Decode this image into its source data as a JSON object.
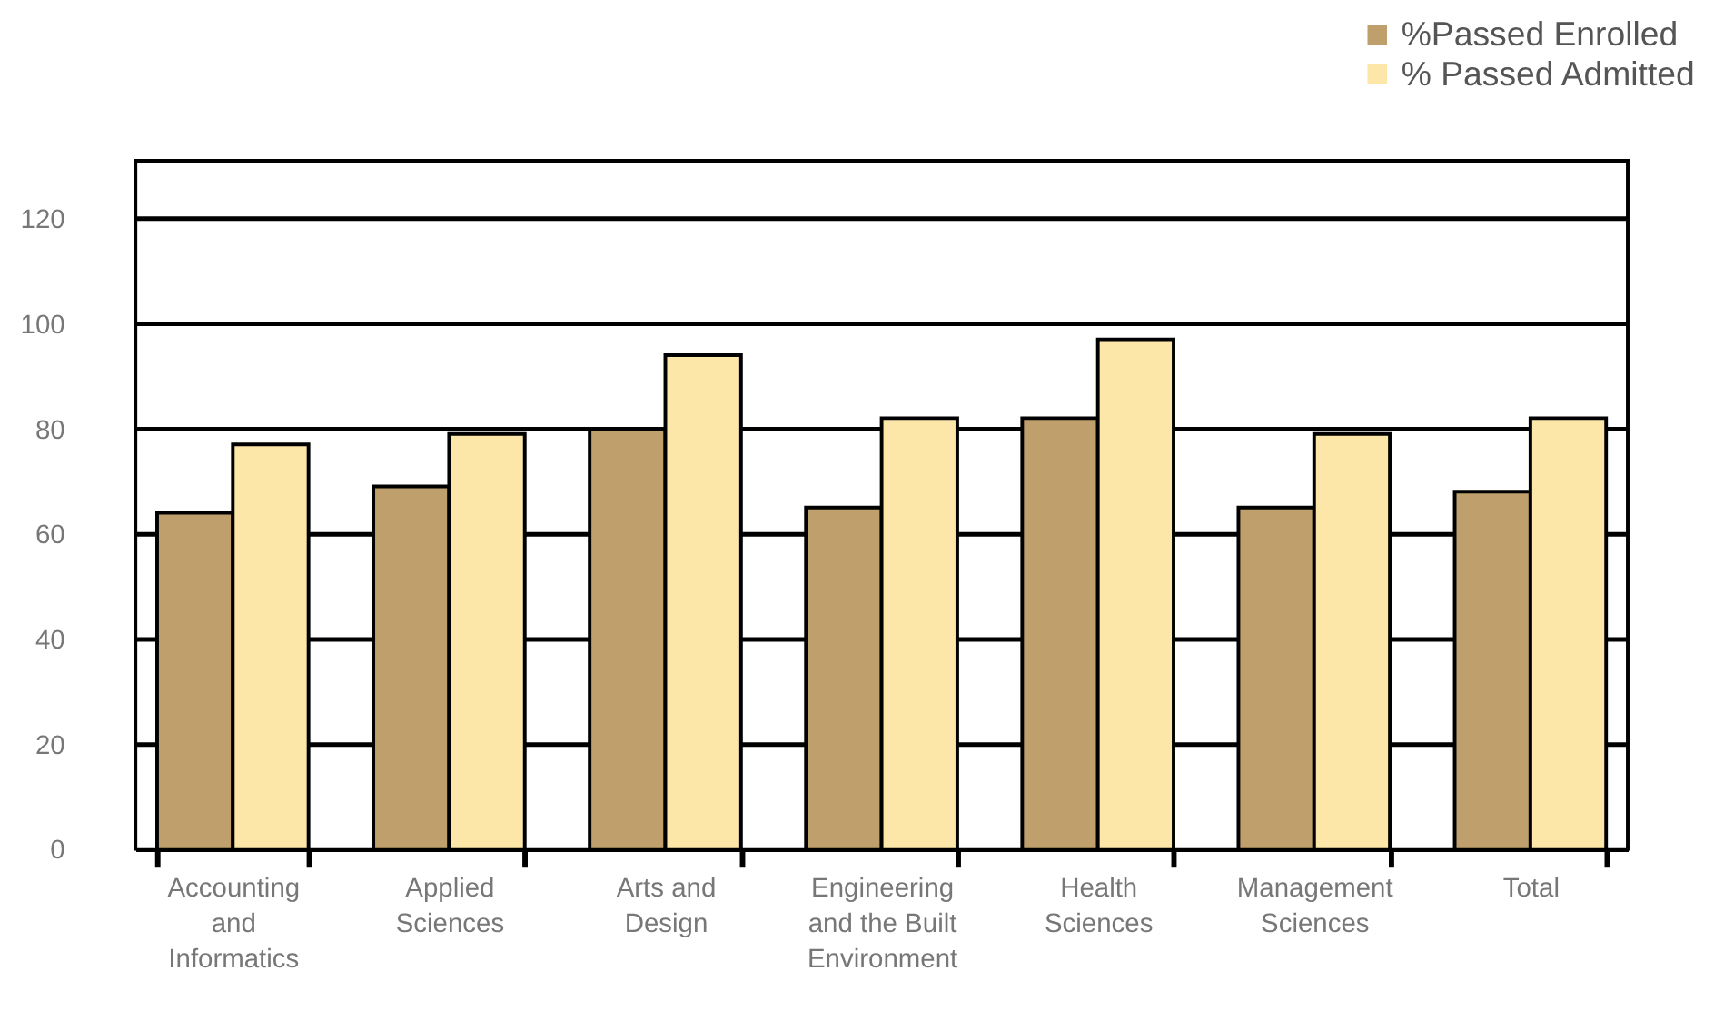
{
  "chart_data": {
    "type": "bar",
    "categories": [
      "Accounting and Informatics",
      "Applied Sciences",
      "Arts and Design",
      "Engineering and the Built Environment",
      "Health Sciences",
      "Management Sciences",
      "Total"
    ],
    "series": [
      {
        "name": "%Passed Enrolled",
        "color": "#bf9f6b",
        "values": [
          64,
          69,
          80,
          65,
          82,
          65,
          68
        ]
      },
      {
        "name": "% Passed Admitted",
        "color": "#fce7a9",
        "values": [
          77,
          79,
          94,
          82,
          97,
          79,
          82
        ]
      }
    ],
    "ylim": [
      0,
      131
    ],
    "yticks": [
      0,
      20,
      40,
      60,
      80,
      100,
      120
    ],
    "grid": "y",
    "legend": "top right"
  }
}
